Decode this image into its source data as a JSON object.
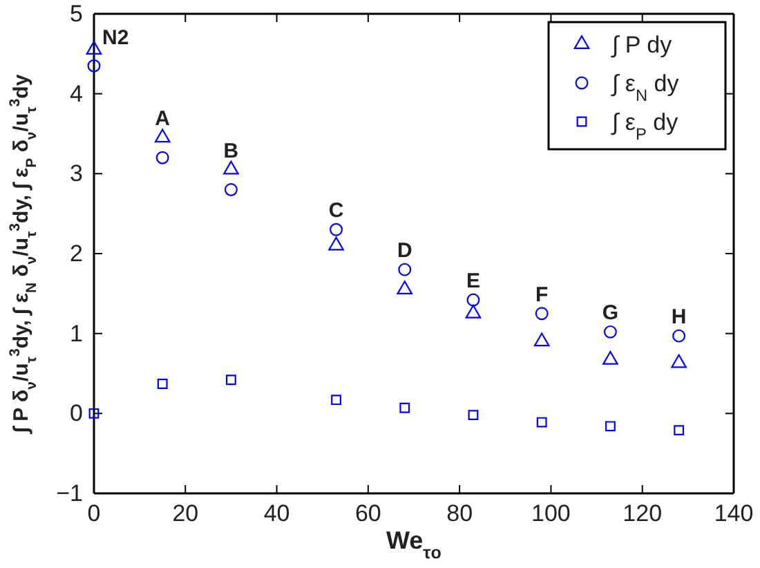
{
  "chart_data": {
    "type": "scatter",
    "xlabel": "We$_{τo}$",
    "ylabel": "∫ P δ$_{ν}$/u$_{τ}$$^{3}$dy, ∫ ε$_{N}$ δ$_{ν}$/u$_{τ}$$^{3}$dy, ∫ ε$_{P}$ δ$_{ν}$/u$_{τ}$$^{3}$dy",
    "x": [
      0,
      15,
      30,
      53,
      68,
      83,
      98,
      113,
      128
    ],
    "xlim": [
      0,
      140
    ],
    "xticks": [
      0,
      20,
      40,
      60,
      80,
      100,
      120,
      140
    ],
    "ylim": [
      -1,
      5
    ],
    "yticks": [
      -1,
      0,
      1,
      2,
      3,
      4,
      5
    ],
    "grid": false,
    "legend": "top right",
    "series": [
      {
        "name": "∫ P dy",
        "color": "#0000ff",
        "marker": "triangle",
        "values": [
          4.55,
          3.45,
          3.05,
          2.1,
          1.55,
          1.25,
          0.9,
          0.67,
          0.63
        ]
      },
      {
        "name": "∫ ε$_{N}$ dy",
        "color": "#0000ff",
        "marker": "circle",
        "values": [
          4.35,
          3.2,
          2.8,
          2.3,
          1.8,
          1.42,
          1.25,
          1.02,
          0.97
        ]
      },
      {
        "name": "∫ ε$_{P}$ dy",
        "color": "#0000ff",
        "marker": "square",
        "values": [
          0,
          0.37,
          0.42,
          0.17,
          0.07,
          -0.02,
          -0.11,
          -0.16,
          -0.21
        ]
      }
    ],
    "annotations": [
      {
        "text": "N2",
        "x": 0,
        "y": 4.55
      },
      {
        "text": "A",
        "x": 15,
        "y": 3.45
      },
      {
        "text": "B",
        "x": 30,
        "y": 3.05
      },
      {
        "text": "C",
        "x": 53,
        "y": 2.3
      },
      {
        "text": "D",
        "x": 68,
        "y": 1.8
      },
      {
        "text": "E",
        "x": 83,
        "y": 1.42
      },
      {
        "text": "F",
        "x": 98,
        "y": 1.25
      },
      {
        "text": "G",
        "x": 113,
        "y": 1.02
      },
      {
        "text": "H",
        "x": 128,
        "y": 0.97
      }
    ]
  }
}
